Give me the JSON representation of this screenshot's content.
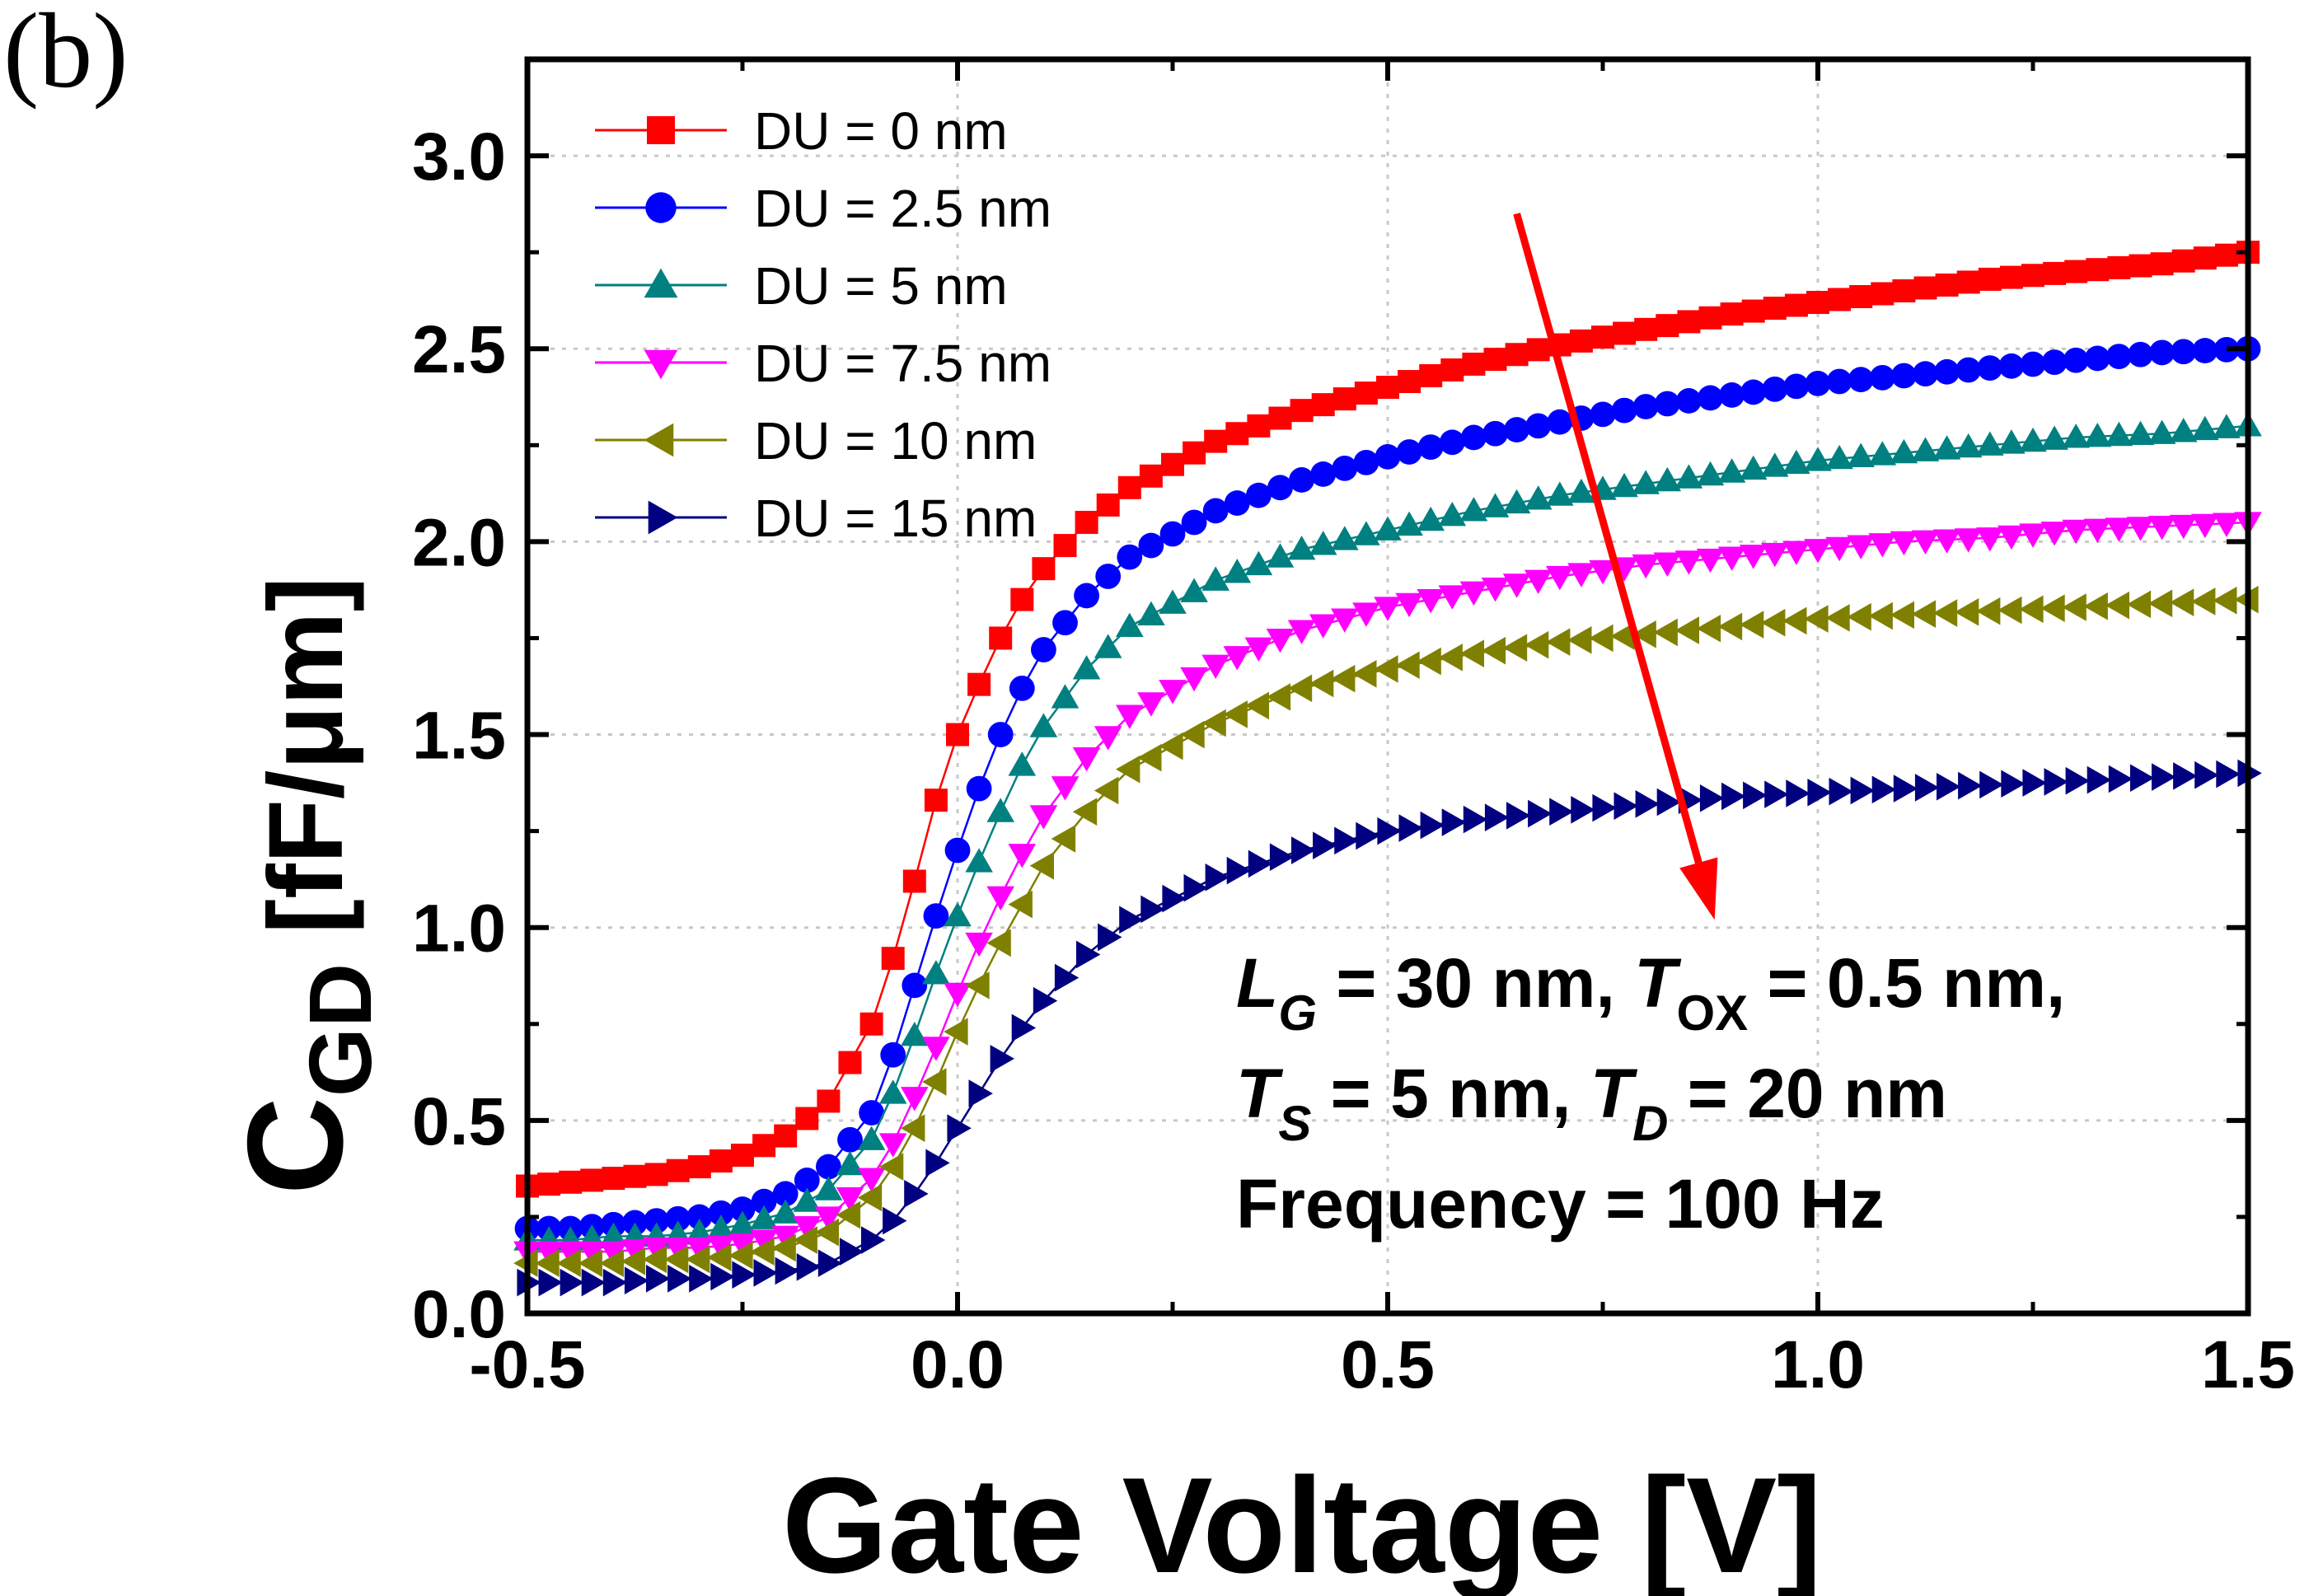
{
  "panel_label": "(b)",
  "chart_data": {
    "type": "line",
    "xlabel": "Gate Voltage [V]",
    "ylabel_main": "C",
    "ylabel_sub": "GD",
    "ylabel_unit": " [fF/μm]",
    "xlim": [
      -0.5,
      1.5
    ],
    "ylim": [
      0.0,
      3.25
    ],
    "xticks": [
      -0.5,
      0.0,
      0.5,
      1.0,
      1.5
    ],
    "xtick_labels": [
      "-0.5",
      "0.0",
      "0.5",
      "1.0",
      "1.5"
    ],
    "yticks": [
      0.0,
      0.5,
      1.0,
      1.5,
      2.0,
      2.5,
      3.0
    ],
    "ytick_labels": [
      "0.0",
      "0.5",
      "1.0",
      "1.5",
      "2.0",
      "2.5",
      "3.0"
    ],
    "grid": true,
    "legend_position": "top-left",
    "x": [
      -0.5,
      -0.45,
      -0.4,
      -0.35,
      -0.3,
      -0.25,
      -0.2,
      -0.15,
      -0.1,
      -0.075,
      -0.05,
      -0.025,
      0.0,
      0.025,
      0.05,
      0.075,
      0.1,
      0.15,
      0.2,
      0.3,
      0.4,
      0.5,
      0.6,
      0.7,
      0.8,
      0.9,
      1.0,
      1.1,
      1.2,
      1.3,
      1.4,
      1.5
    ],
    "series": [
      {
        "name": "DU = 0 nm",
        "color": "#ff0000",
        "marker": "square",
        "values": [
          0.33,
          0.34,
          0.35,
          0.36,
          0.38,
          0.41,
          0.46,
          0.55,
          0.75,
          0.92,
          1.12,
          1.33,
          1.5,
          1.63,
          1.75,
          1.85,
          1.93,
          2.05,
          2.14,
          2.26,
          2.34,
          2.4,
          2.46,
          2.51,
          2.55,
          2.59,
          2.62,
          2.65,
          2.68,
          2.7,
          2.72,
          2.75
        ]
      },
      {
        "name": "DU = 2.5 nm",
        "color": "#0000ff",
        "marker": "circle",
        "values": [
          0.22,
          0.22,
          0.23,
          0.24,
          0.25,
          0.27,
          0.31,
          0.38,
          0.52,
          0.67,
          0.85,
          1.03,
          1.2,
          1.36,
          1.5,
          1.62,
          1.72,
          1.86,
          1.96,
          2.08,
          2.16,
          2.22,
          2.27,
          2.31,
          2.35,
          2.38,
          2.41,
          2.43,
          2.45,
          2.47,
          2.49,
          2.5
        ]
      },
      {
        "name": "DU = 5 nm",
        "color": "#008080",
        "marker": "triangle-up",
        "values": [
          0.19,
          0.19,
          0.2,
          0.2,
          0.21,
          0.23,
          0.26,
          0.32,
          0.45,
          0.57,
          0.72,
          0.88,
          1.03,
          1.17,
          1.3,
          1.42,
          1.52,
          1.67,
          1.78,
          1.9,
          1.98,
          2.03,
          2.08,
          2.12,
          2.15,
          2.18,
          2.21,
          2.23,
          2.25,
          2.27,
          2.28,
          2.3
        ]
      },
      {
        "name": "DU = 7.5 nm",
        "color": "#ff00ff",
        "marker": "triangle-down",
        "values": [
          0.16,
          0.16,
          0.16,
          0.17,
          0.17,
          0.18,
          0.2,
          0.25,
          0.35,
          0.44,
          0.56,
          0.69,
          0.83,
          0.96,
          1.08,
          1.19,
          1.29,
          1.44,
          1.55,
          1.68,
          1.77,
          1.83,
          1.87,
          1.91,
          1.94,
          1.96,
          1.98,
          2.0,
          2.01,
          2.03,
          2.04,
          2.05
        ]
      },
      {
        "name": "DU = 10 nm",
        "color": "#808000",
        "marker": "triangle-left",
        "values": [
          0.13,
          0.13,
          0.13,
          0.14,
          0.14,
          0.15,
          0.17,
          0.21,
          0.3,
          0.38,
          0.48,
          0.6,
          0.73,
          0.85,
          0.96,
          1.06,
          1.16,
          1.3,
          1.41,
          1.53,
          1.62,
          1.67,
          1.71,
          1.74,
          1.76,
          1.78,
          1.8,
          1.81,
          1.82,
          1.83,
          1.84,
          1.85
        ]
      },
      {
        "name": "DU = 15 nm",
        "color": "#000080",
        "marker": "triangle-right",
        "values": [
          0.08,
          0.08,
          0.08,
          0.09,
          0.09,
          0.1,
          0.11,
          0.13,
          0.19,
          0.24,
          0.31,
          0.39,
          0.48,
          0.57,
          0.66,
          0.74,
          0.81,
          0.93,
          1.02,
          1.13,
          1.2,
          1.25,
          1.28,
          1.3,
          1.32,
          1.34,
          1.35,
          1.36,
          1.37,
          1.38,
          1.39,
          1.4
        ]
      }
    ],
    "arrow": {
      "from": [
        0.65,
        2.85
      ],
      "to": [
        0.88,
        1.02
      ],
      "color": "#ff0000"
    },
    "annotation_lines": [
      [
        {
          "t": "L",
          "i": true
        },
        {
          "t": "G",
          "i": true,
          "sub": true
        },
        {
          "t": " = 30 nm, "
        },
        {
          "t": "T",
          "i": true
        },
        {
          "t": "OX",
          "sub": true
        },
        {
          "t": " = 0.5 nm,"
        }
      ],
      [
        {
          "t": "T",
          "i": true
        },
        {
          "t": "S",
          "i": true,
          "sub": true
        },
        {
          "t": " = 5 nm, "
        },
        {
          "t": "T",
          "i": true
        },
        {
          "t": "D",
          "i": true,
          "sub": true
        },
        {
          "t": " = 20 nm"
        }
      ],
      [
        {
          "t": "Frequency = 100 Hz"
        }
      ]
    ]
  }
}
